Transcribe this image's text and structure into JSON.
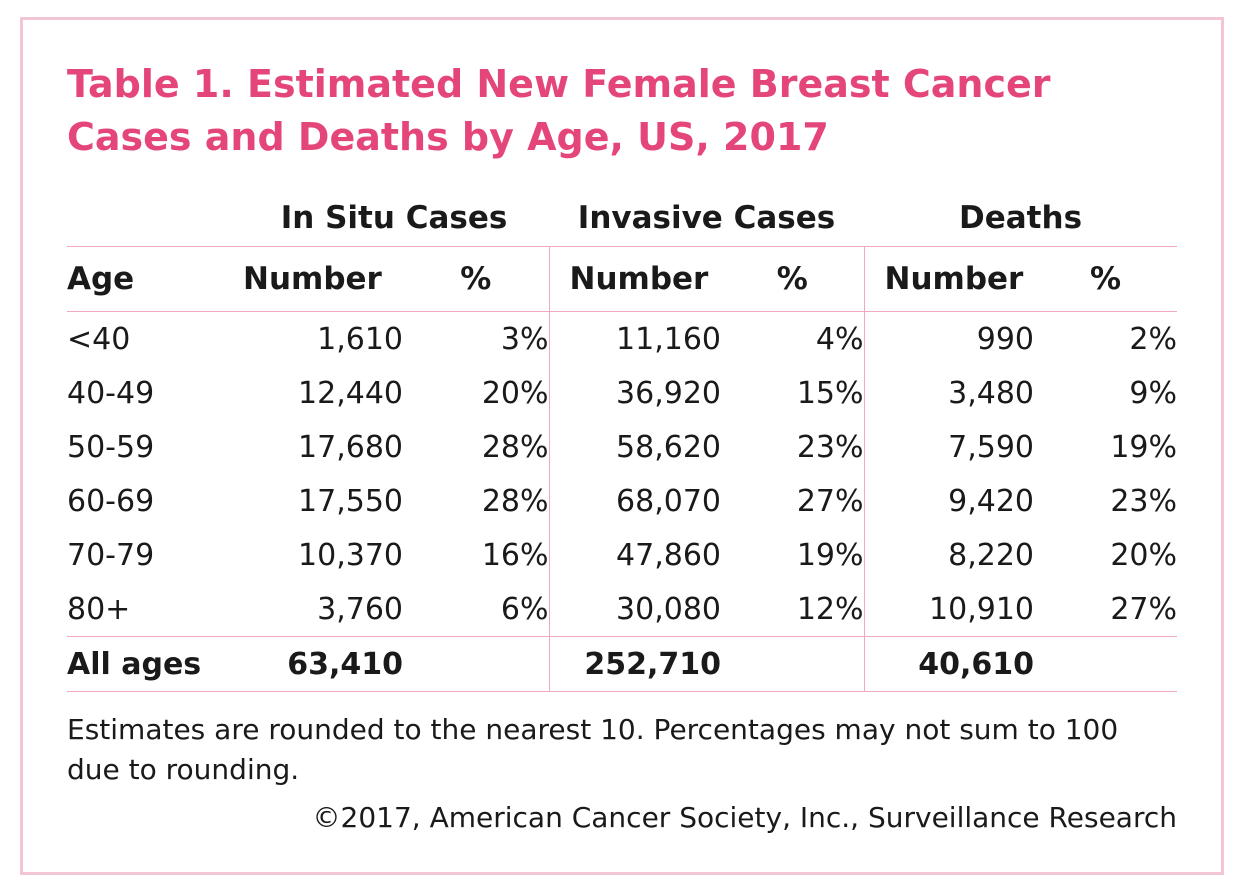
{
  "title": "Table 1. Estimated New Female Breast Cancer Cases and Deaths by Age, US, 2017",
  "groups": [
    "In Situ Cases",
    "Invasive Cases",
    "Deaths"
  ],
  "columns": {
    "age": "Age",
    "number": "Number",
    "percent": "%"
  },
  "rows": [
    {
      "age": "<40",
      "insitu_n": "1,610",
      "insitu_p": "3%",
      "inv_n": "11,160",
      "inv_p": "4%",
      "death_n": "990",
      "death_p": "2%"
    },
    {
      "age": "40-49",
      "insitu_n": "12,440",
      "insitu_p": "20%",
      "inv_n": "36,920",
      "inv_p": "15%",
      "death_n": "3,480",
      "death_p": "9%"
    },
    {
      "age": "50-59",
      "insitu_n": "17,680",
      "insitu_p": "28%",
      "inv_n": "58,620",
      "inv_p": "23%",
      "death_n": "7,590",
      "death_p": "19%"
    },
    {
      "age": "60-69",
      "insitu_n": "17,550",
      "insitu_p": "28%",
      "inv_n": "68,070",
      "inv_p": "27%",
      "death_n": "9,420",
      "death_p": "23%"
    },
    {
      "age": "70-79",
      "insitu_n": "10,370",
      "insitu_p": "16%",
      "inv_n": "47,860",
      "inv_p": "19%",
      "death_n": "8,220",
      "death_p": "20%"
    },
    {
      "age": "80+",
      "insitu_n": "3,760",
      "insitu_p": "6%",
      "inv_n": "30,080",
      "inv_p": "12%",
      "death_n": "10,910",
      "death_p": "27%"
    }
  ],
  "total": {
    "label": "All ages",
    "insitu_n": "63,410",
    "inv_n": "252,710",
    "death_n": "40,610"
  },
  "note": "Estimates are rounded to the nearest 10. Percentages may not sum to 100 due to rounding.",
  "copyright": "©2017, American Cancer Society, Inc., Surveillance Research",
  "colors": {
    "title": "#e5467a",
    "frame": "#f4c5d2",
    "rule": "#f0a9bf"
  }
}
